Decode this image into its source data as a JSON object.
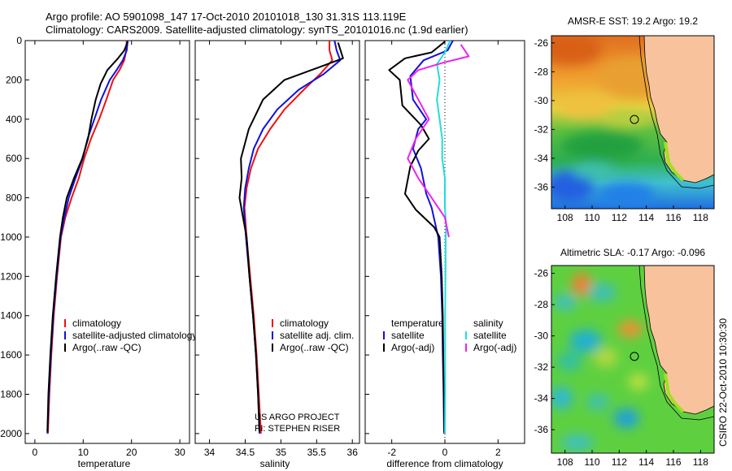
{
  "header": {
    "line1": "Argo profile: AO 5901098_147 17-Oct-2010 20101018_130 31.31S 113.119E",
    "line2": "Climatology: CARS2009. Satellite-adjusted climatology: synTS_20101016.nc (1.9d earlier)"
  },
  "credit": "US ARGO PROJECT\nPI: STEPHEN RISER",
  "stamp": "CSIRO 22-Oct-2010 10:30:30",
  "colors": {
    "climatology": "#ee1111",
    "satellite": "#1111dd",
    "argo": "#000000",
    "salinity_satellite": "#22dddd",
    "salinity_argo": "#ee22ee",
    "land": "#f8c39c"
  },
  "chart_data": [
    {
      "type": "line",
      "id": "temperature",
      "xlabel": "temperature",
      "ylabel": "",
      "xlim": [
        -2,
        32
      ],
      "ylim": [
        2050,
        0
      ],
      "xticks": [
        0,
        10,
        20,
        30
      ],
      "yticks": [
        0,
        200,
        400,
        600,
        800,
        1000,
        1200,
        1400,
        1600,
        1800,
        2000
      ],
      "legend": [
        {
          "label": "climatology",
          "color": "#ee1111"
        },
        {
          "label": "satellite-adjusted climatology",
          "color": "#1111dd"
        },
        {
          "label": "Argo(..raw -QC)",
          "color": "#000000"
        }
      ],
      "legend_position": "lower-right",
      "series": [
        {
          "name": "climatology",
          "color": "#ee1111",
          "points": [
            [
              19,
              0
            ],
            [
              18.9,
              50
            ],
            [
              18.5,
              100
            ],
            [
              17.5,
              150
            ],
            [
              16.2,
              200
            ],
            [
              14.8,
              300
            ],
            [
              13.3,
              400
            ],
            [
              11.6,
              500
            ],
            [
              10.2,
              600
            ],
            [
              9.1,
              700
            ],
            [
              7.6,
              800
            ],
            [
              6.3,
              900
            ],
            [
              5.4,
              1000
            ],
            [
              4.6,
              1200
            ],
            [
              3.9,
              1400
            ],
            [
              3.4,
              1600
            ],
            [
              3.0,
              1800
            ],
            [
              2.7,
              2000
            ]
          ]
        },
        {
          "name": "satellite-adjusted climatology",
          "color": "#1111dd",
          "points": [
            [
              19.2,
              0
            ],
            [
              19.0,
              50
            ],
            [
              18.2,
              100
            ],
            [
              16.9,
              150
            ],
            [
              15.5,
              200
            ],
            [
              13.7,
              300
            ],
            [
              12.3,
              400
            ],
            [
              10.9,
              500
            ],
            [
              9.9,
              600
            ],
            [
              8.4,
              700
            ],
            [
              7.0,
              800
            ],
            [
              6.1,
              900
            ],
            [
              5.3,
              1000
            ],
            [
              4.5,
              1200
            ],
            [
              3.8,
              1400
            ],
            [
              3.3,
              1600
            ],
            [
              2.9,
              1800
            ],
            [
              2.6,
              2000
            ]
          ]
        },
        {
          "name": "Argo(..raw -QC)",
          "color": "#000000",
          "points": [
            [
              19.2,
              5
            ],
            [
              18.5,
              50
            ],
            [
              17.2,
              90
            ],
            [
              15.0,
              150
            ],
            [
              13.6,
              220
            ],
            [
              12.6,
              300
            ],
            [
              11.7,
              400
            ],
            [
              11.0,
              500
            ],
            [
              9.8,
              600
            ],
            [
              8.1,
              700
            ],
            [
              6.6,
              800
            ],
            [
              5.8,
              900
            ],
            [
              5.2,
              1000
            ],
            [
              4.4,
              1200
            ],
            [
              3.7,
              1400
            ],
            [
              3.2,
              1600
            ],
            [
              2.8,
              1800
            ],
            [
              2.6,
              1990
            ]
          ]
        }
      ]
    },
    {
      "type": "line",
      "id": "salinity",
      "xlabel": "salinity",
      "ylabel": "",
      "xlim": [
        33.8,
        36.1
      ],
      "ylim": [
        2050,
        0
      ],
      "xticks": [
        34,
        34.5,
        35,
        35.5,
        36
      ],
      "legend": [
        {
          "label": "climatology",
          "color": "#ee1111"
        },
        {
          "label": "satellite adj. clim.",
          "color": "#1111dd"
        },
        {
          "label": "Argo(..raw -QC)",
          "color": "#000000"
        }
      ],
      "legend_position": "lower-right",
      "series": [
        {
          "name": "climatology",
          "color": "#ee1111",
          "points": [
            [
              35.68,
              0
            ],
            [
              35.68,
              50
            ],
            [
              35.72,
              100
            ],
            [
              35.55,
              170
            ],
            [
              35.32,
              250
            ],
            [
              35.05,
              350
            ],
            [
              34.85,
              450
            ],
            [
              34.68,
              550
            ],
            [
              34.58,
              650
            ],
            [
              34.52,
              750
            ],
            [
              34.49,
              850
            ],
            [
              34.52,
              1000
            ],
            [
              34.57,
              1200
            ],
            [
              34.62,
              1400
            ],
            [
              34.66,
              1600
            ],
            [
              34.69,
              1800
            ],
            [
              34.72,
              2000
            ]
          ]
        },
        {
          "name": "satellite adj. clim.",
          "color": "#1111dd",
          "points": [
            [
              35.75,
              0
            ],
            [
              35.78,
              50
            ],
            [
              35.83,
              100
            ],
            [
              35.6,
              170
            ],
            [
              35.25,
              250
            ],
            [
              34.95,
              350
            ],
            [
              34.75,
              450
            ],
            [
              34.62,
              550
            ],
            [
              34.55,
              650
            ],
            [
              34.5,
              750
            ],
            [
              34.48,
              850
            ],
            [
              34.51,
              1000
            ],
            [
              34.56,
              1200
            ],
            [
              34.61,
              1400
            ],
            [
              34.65,
              1600
            ],
            [
              34.68,
              1800
            ],
            [
              34.7,
              2000
            ]
          ]
        },
        {
          "name": "Argo(..raw -QC)",
          "color": "#000000",
          "points": [
            [
              35.8,
              10
            ],
            [
              35.87,
              90
            ],
            [
              35.5,
              140
            ],
            [
              35.05,
              200
            ],
            [
              34.75,
              300
            ],
            [
              34.55,
              450
            ],
            [
              34.44,
              600
            ],
            [
              34.45,
              700
            ],
            [
              34.42,
              800
            ],
            [
              34.47,
              900
            ],
            [
              34.52,
              1000
            ],
            [
              34.56,
              1200
            ],
            [
              34.61,
              1400
            ],
            [
              34.65,
              1600
            ],
            [
              34.68,
              1800
            ],
            [
              34.7,
              1990
            ]
          ]
        }
      ]
    },
    {
      "type": "line",
      "id": "difference",
      "xlabel": "difference from climatology",
      "ylabel": "",
      "xlim": [
        -3.0,
        3.0
      ],
      "ylim": [
        2050,
        0
      ],
      "xticks": [
        -2,
        0,
        2
      ],
      "zero_line": "dotted",
      "legend": [
        {
          "label": "temperature",
          "color": ""
        },
        {
          "label": "satellite",
          "color": "#1111dd"
        },
        {
          "label": "Argo(-adj)",
          "color": "#000000"
        },
        {
          "label": "salinity",
          "color": ""
        },
        {
          "label": "satellite",
          "color": "#22dddd"
        },
        {
          "label": "Argo(-adj)",
          "color": "#ee22ee"
        }
      ],
      "legend_position": "lower-center",
      "series": [
        {
          "name": "temperature satellite",
          "color": "#1111dd",
          "points": [
            [
              0.3,
              0
            ],
            [
              0.1,
              50
            ],
            [
              -0.8,
              100
            ],
            [
              -1.3,
              180
            ],
            [
              -1.2,
              300
            ],
            [
              -0.7,
              400
            ],
            [
              -1.0,
              450
            ],
            [
              -1.2,
              550
            ],
            [
              -0.9,
              650
            ],
            [
              -0.7,
              780
            ],
            [
              -0.5,
              850
            ],
            [
              -0.25,
              1000
            ],
            [
              -0.15,
              1200
            ],
            [
              -0.1,
              1400
            ],
            [
              -0.08,
              1600
            ],
            [
              -0.05,
              1800
            ],
            [
              -0.03,
              2000
            ]
          ]
        },
        {
          "name": "temperature Argo(-adj)",
          "color": "#000000",
          "points": [
            [
              0.0,
              5
            ],
            [
              -0.5,
              60
            ],
            [
              -1.5,
              90
            ],
            [
              -2.1,
              150
            ],
            [
              -1.7,
              200
            ],
            [
              -1.6,
              330
            ],
            [
              -0.9,
              430
            ],
            [
              -0.6,
              500
            ],
            [
              -1.0,
              560
            ],
            [
              -1.3,
              640
            ],
            [
              -1.5,
              780
            ],
            [
              -1.1,
              860
            ],
            [
              -0.4,
              950
            ],
            [
              -0.2,
              1000
            ],
            [
              -0.12,
              1200
            ],
            [
              -0.08,
              1400
            ],
            [
              -0.06,
              1600
            ],
            [
              -0.04,
              1800
            ],
            [
              -0.02,
              1990
            ]
          ]
        },
        {
          "name": "salinity satellite",
          "color": "#22dddd",
          "points": [
            [
              0.2,
              0
            ],
            [
              0.0,
              60
            ],
            [
              -0.3,
              120
            ],
            [
              -0.2,
              200
            ],
            [
              -0.3,
              300
            ],
            [
              -0.2,
              400
            ],
            [
              -0.1,
              500
            ],
            [
              -0.1,
              600
            ],
            [
              0.0,
              700
            ],
            [
              0.0,
              850
            ],
            [
              0.05,
              950
            ],
            [
              0.03,
              1000
            ],
            [
              0.02,
              1200
            ],
            [
              0.01,
              1400
            ],
            [
              0.01,
              1600
            ],
            [
              0.01,
              1800
            ],
            [
              0.0,
              2000
            ]
          ]
        },
        {
          "name": "salinity Argo(-adj)",
          "color": "#ee22ee",
          "points": [
            [
              0.6,
              20
            ],
            [
              0.9,
              80
            ],
            [
              0.0,
              110
            ],
            [
              -1.0,
              150
            ],
            [
              -1.4,
              200
            ],
            [
              -1.0,
              300
            ],
            [
              -0.6,
              400
            ],
            [
              -1.1,
              500
            ],
            [
              -1.4,
              600
            ],
            [
              -1.0,
              700
            ],
            [
              -0.5,
              800
            ],
            [
              0.0,
              900
            ],
            [
              0.15,
              1000
            ]
          ]
        }
      ]
    }
  ],
  "maps": [
    {
      "id": "sst-map",
      "title": "AMSR-E SST: 19.2 Argo: 19.2",
      "xticks": [
        108,
        110,
        112,
        114,
        116,
        118
      ],
      "yticks": [
        -26,
        -28,
        -30,
        -32,
        -34,
        -36
      ],
      "xlim": [
        107,
        119
      ],
      "ylim": [
        -37.5,
        -25.5
      ],
      "float_lon": 113.119,
      "float_lat": -31.31
    },
    {
      "id": "sla-map",
      "title": "Altimetric SLA: -0.17 Argo: -0.096",
      "xticks": [
        108,
        110,
        112,
        114,
        116,
        118
      ],
      "yticks": [
        -26,
        -28,
        -30,
        -32,
        -34,
        -36
      ],
      "xlim": [
        107,
        119
      ],
      "ylim": [
        -37.5,
        -25.5
      ],
      "float_lon": 113.119,
      "float_lat": -31.31
    }
  ]
}
